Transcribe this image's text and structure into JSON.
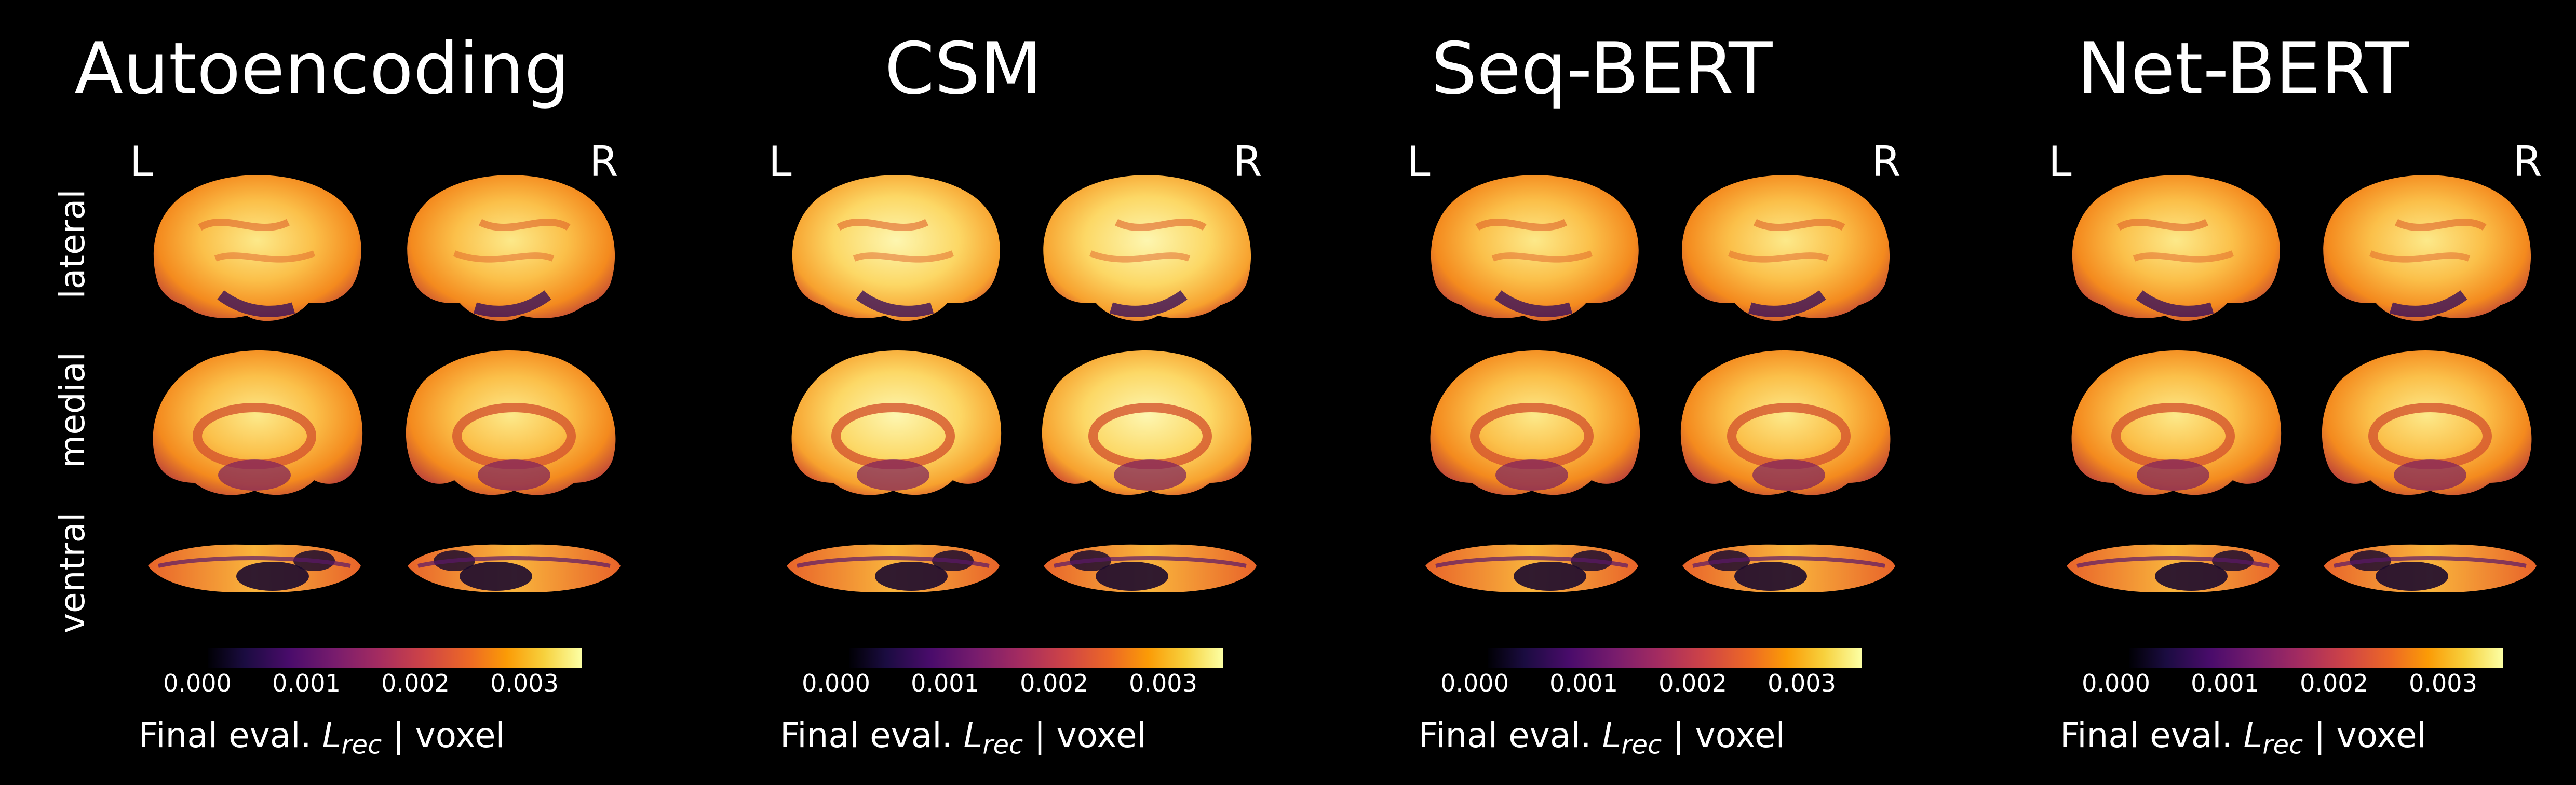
{
  "panels": [
    {
      "title": "Autoencoding",
      "hemi_left": "L",
      "hemi_right": "R",
      "views": [
        "lateral",
        "medial",
        "ventral"
      ],
      "colorbar_ticks": [
        "0.000",
        "0.001",
        "0.002",
        "0.003"
      ],
      "colorbar_label_pre": "Final eval.",
      "colorbar_label_sym": "L",
      "colorbar_label_sub": "rec",
      "colorbar_label_post": "| voxel"
    },
    {
      "title": "CSM",
      "hemi_left": "L",
      "hemi_right": "R",
      "colorbar_ticks": [
        "0.000",
        "0.001",
        "0.002",
        "0.003"
      ],
      "colorbar_label_pre": "Final eval.",
      "colorbar_label_sym": "L",
      "colorbar_label_sub": "rec",
      "colorbar_label_post": "| voxel"
    },
    {
      "title": "Seq-BERT",
      "hemi_left": "L",
      "hemi_right": "R",
      "colorbar_ticks": [
        "0.000",
        "0.001",
        "0.002",
        "0.003"
      ],
      "colorbar_label_pre": "Final eval.",
      "colorbar_label_sym": "L",
      "colorbar_label_sub": "rec",
      "colorbar_label_post": "| voxel"
    },
    {
      "title": "Net-BERT",
      "hemi_left": "L",
      "hemi_right": "R",
      "colorbar_ticks": [
        "0.000",
        "0.001",
        "0.002",
        "0.003"
      ],
      "colorbar_label_pre": "Final eval.",
      "colorbar_label_sym": "L",
      "colorbar_label_sub": "rec",
      "colorbar_label_post": "| voxel"
    }
  ],
  "colormap": "inferno",
  "colors": {
    "background": "#000000",
    "low": "#000004",
    "mid": "#cf4446",
    "high": "#fcffa4"
  }
}
